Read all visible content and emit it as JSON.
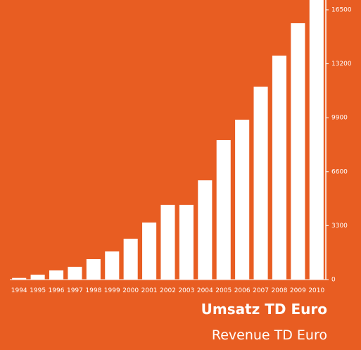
{
  "chart_data": {
    "type": "bar",
    "title": "Umsatz TD Euro",
    "subtitle": "Revenue TD Euro",
    "categories": [
      "1994",
      "1995",
      "1996",
      "1997",
      "1998",
      "1999",
      "2000",
      "2001",
      "2002",
      "2003",
      "2004",
      "2005",
      "2006",
      "2007",
      "2008",
      "2009",
      "2010"
    ],
    "values": [
      100,
      300,
      560,
      780,
      1250,
      1720,
      2500,
      3490,
      4570,
      4570,
      6070,
      8530,
      9780,
      11800,
      13700,
      15680,
      17100
    ],
    "color": "#ffffff",
    "ylim": [
      0,
      17100
    ],
    "yticks": [
      0,
      3300,
      6600,
      9900,
      13200,
      16500
    ],
    "grid": false
  }
}
